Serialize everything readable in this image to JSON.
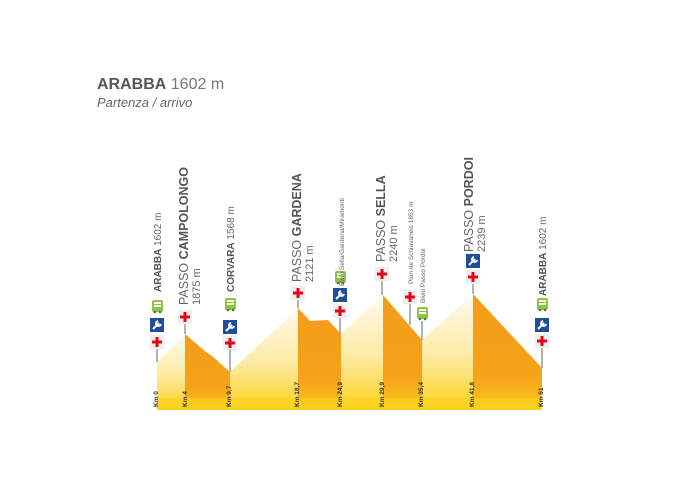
{
  "header": {
    "place": "ARABBA",
    "elevation": "1602 m",
    "subtitle": "Partenza / arrivo"
  },
  "colors": {
    "descent": "#f39c1a",
    "base": "#fcd21c",
    "ascent_top": "#fff8e6",
    "cross": "#e30613",
    "wrench_bg": "#1f4f9c",
    "bus": "#8cc63f"
  },
  "points": [
    {
      "km": "Km 0",
      "prefix": "",
      "name": "ARABBA",
      "elev": "1602 m",
      "icons": [
        "bus-icon",
        "wrench-icon",
        "cross-icon"
      ]
    },
    {
      "km": "Km 4",
      "prefix": "PASSO",
      "name": "CAMPOLONGO",
      "elev": "1875 m",
      "icons": [
        "cross-icon"
      ]
    },
    {
      "km": "Km 9,7",
      "prefix": "",
      "name": "CORVARA",
      "elev": "1568 m",
      "icons": [
        "bus-icon",
        "wrench-icon",
        "cross-icon"
      ]
    },
    {
      "km": "Km 18,7",
      "prefix": "PASSO",
      "name": "GARDENA",
      "elev": "2121 m",
      "icons": [
        "cross-icon"
      ]
    },
    {
      "km": "Km 24,9",
      "small": "Bivio Sella/Gardena/Miramonti",
      "icons": [
        "bus-icon",
        "wrench-icon",
        "cross-icon"
      ]
    },
    {
      "km": "Km 29,9",
      "prefix": "PASSO",
      "name": "SELLA",
      "elev": "2240 m",
      "icons": [
        "cross-icon"
      ]
    },
    {
      "km": "",
      "small": "Pian de Schiavaneis 1853 m",
      "icons": [
        "cross-icon"
      ]
    },
    {
      "km": "Km 35,4",
      "small": "Bivio Passo Pordoi",
      "icons": [
        "bus-icon"
      ]
    },
    {
      "km": "Km 41,8",
      "prefix": "PASSO",
      "name": "PORDOI",
      "elev": "2239 m",
      "icons": [
        "wrench-icon",
        "cross-icon"
      ]
    },
    {
      "km": "Km 51",
      "prefix": "",
      "name": "ARABBA",
      "elev": "1602 m",
      "icons": [
        "bus-icon",
        "wrench-icon",
        "cross-icon"
      ]
    }
  ]
}
